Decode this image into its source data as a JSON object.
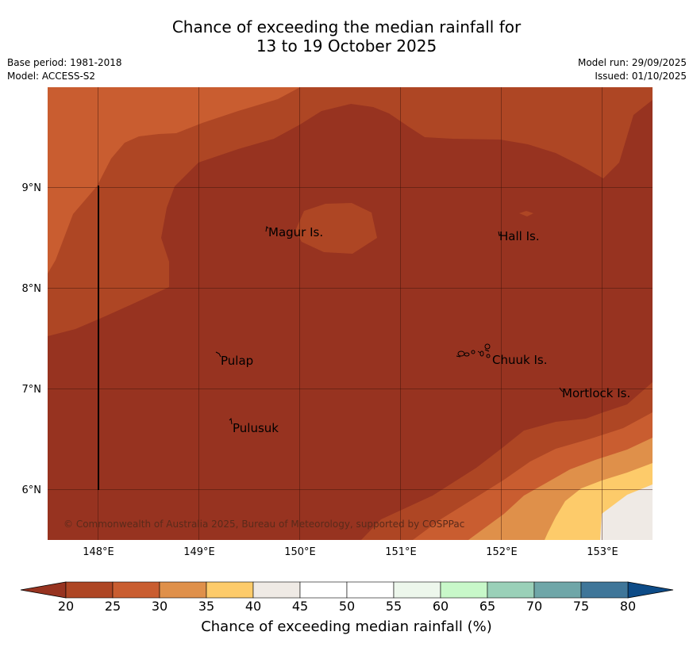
{
  "header": {
    "title_line1": "Chance of exceeding the median rainfall for",
    "title_line2": "13 to 19 October 2025",
    "base_period": "Base period: 1981-2018",
    "model": "Model: ACCESS-S2",
    "model_run": "Model run: 29/09/2025",
    "issued": "Issued: 01/10/2025"
  },
  "map": {
    "lat_labels": [
      "9°N",
      "8°N",
      "7°N",
      "6°N"
    ],
    "lon_labels": [
      "148°E",
      "149°E",
      "150°E",
      "151°E",
      "152°E",
      "153°E"
    ],
    "places": {
      "magur": "Magur Is.",
      "hall": "Hall Is.",
      "pulap": "Pulap",
      "chuuk": "Chuuk Is.",
      "mortlock": "Mortlock Is.",
      "pulusuk": "Pulusuk"
    },
    "copyright": "© Commonwealth of Australia 2025, Bureau of Meteorology, supported by COSPPac"
  },
  "colorbar": {
    "ticks": [
      "20",
      "25",
      "30",
      "35",
      "40",
      "45",
      "50",
      "55",
      "60",
      "65",
      "70",
      "75",
      "80"
    ],
    "colors": [
      "#ae4624",
      "#c95d30",
      "#df904a",
      "#fdcb6a",
      "#efeae5",
      "#ffffff",
      "#ffffff",
      "#edf7ec",
      "#c8f8c9",
      "#9ad0b8",
      "#6fa6a8",
      "#3f7699"
    ],
    "below_color": "#973320",
    "above_color": "#0d4b87",
    "label": "Chance of exceeding median rainfall (%)"
  },
  "legend_colors": {
    "band_20": "#973320",
    "band_20_25": "#ae4624",
    "band_25_30": "#c95d30",
    "band_30_35": "#df904a",
    "band_35_40": "#fdcb6a",
    "band_40_45": "#efeae5"
  }
}
